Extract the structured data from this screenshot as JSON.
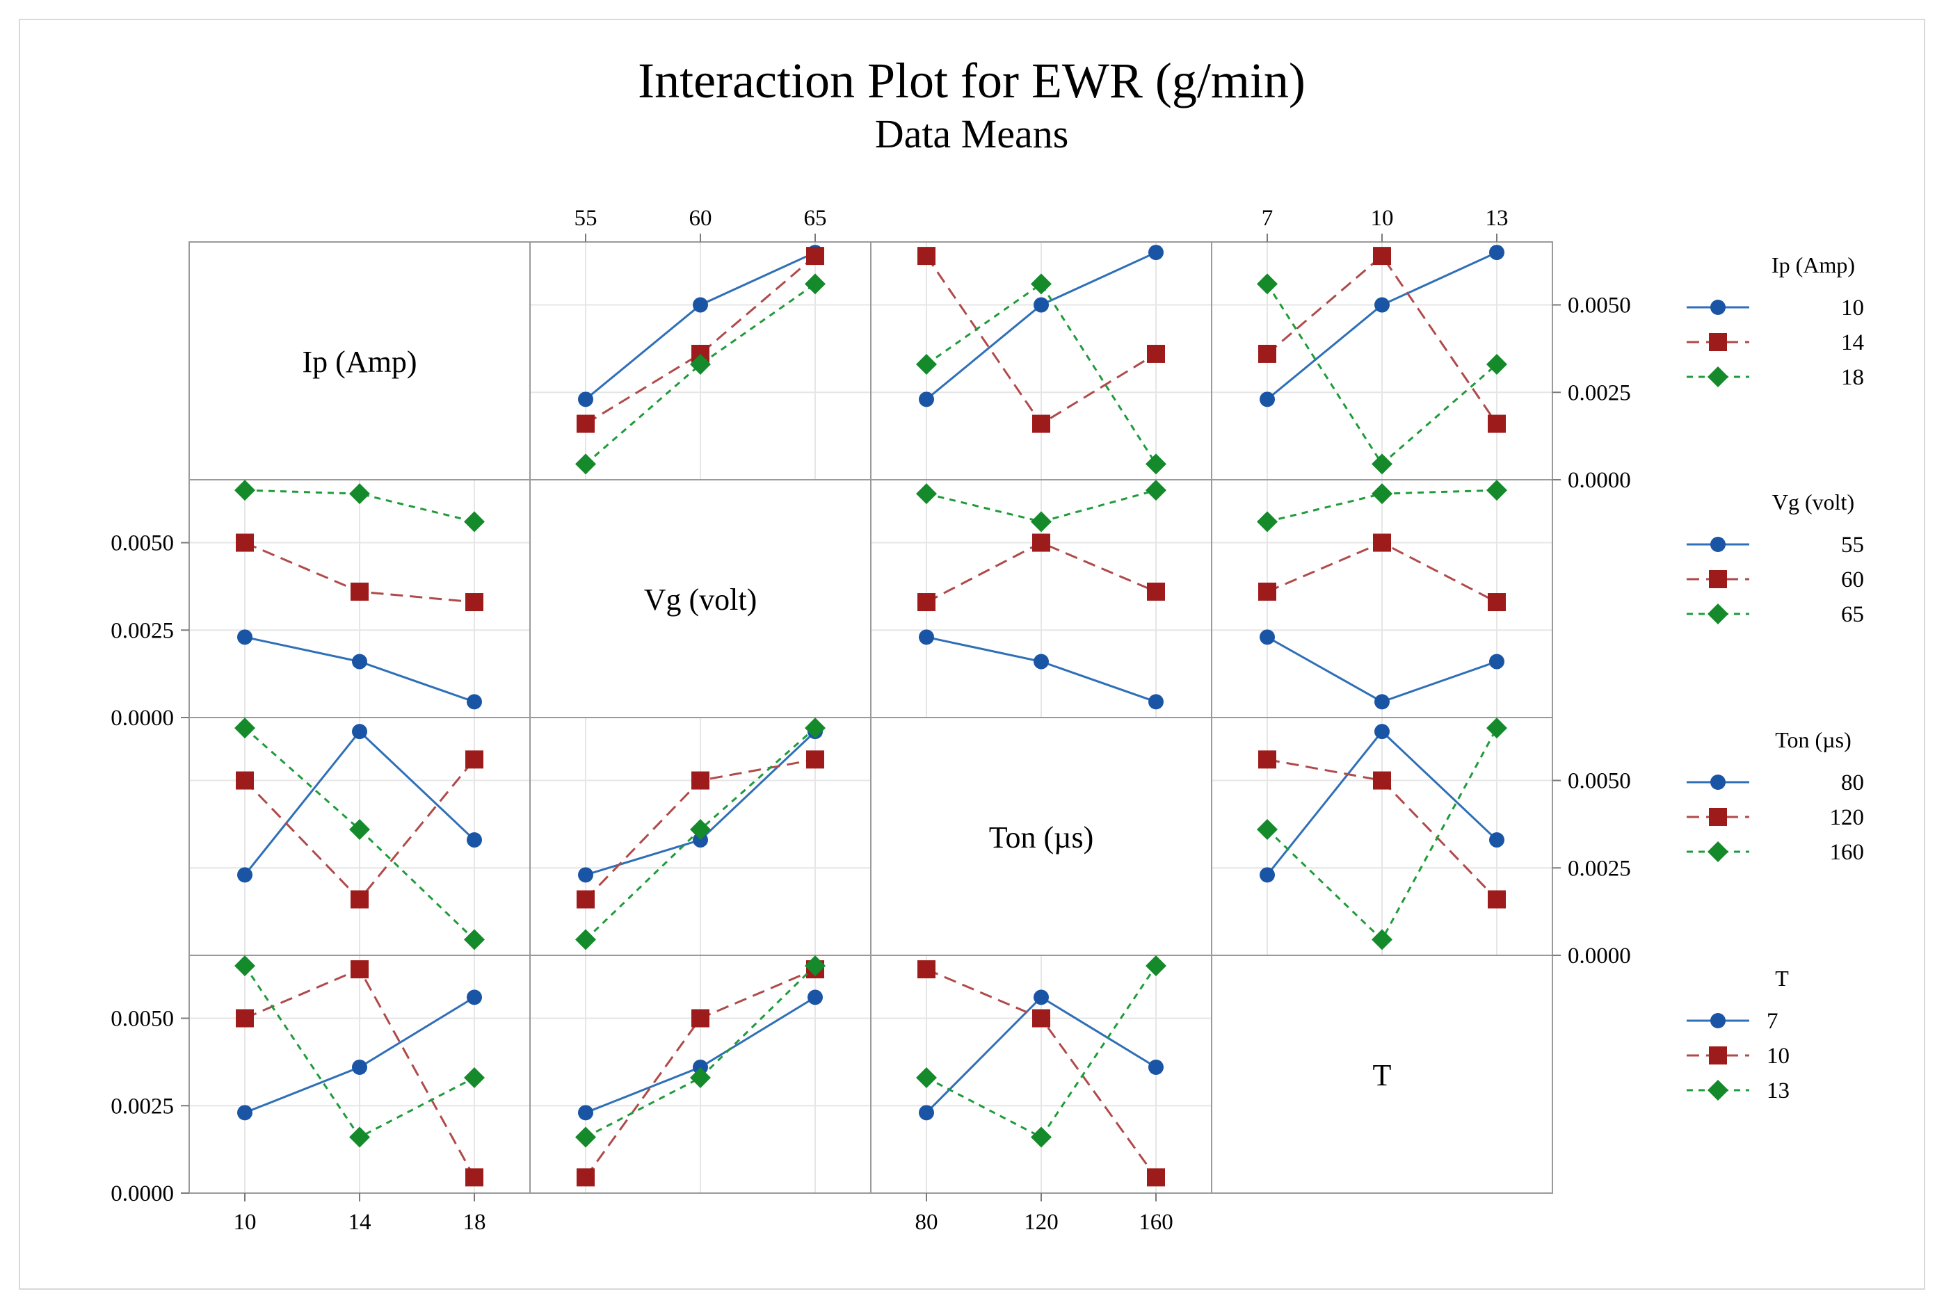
{
  "chart_data": {
    "type": "line",
    "title": "Interaction Plot for EWR (g/min)",
    "subtitle": "Data Means",
    "ylim": [
      0.0,
      0.0068
    ],
    "y_ticks": [
      "0.0000",
      "0.0025",
      "0.0050"
    ],
    "y_tick_values": [
      0.0,
      0.0025,
      0.005
    ],
    "factors": [
      {
        "name": "Ip (Amp)",
        "levels": [
          "10",
          "14",
          "18"
        ],
        "legend_title": "Ip (Amp)",
        "legend_levels": [
          "10",
          "14",
          "18"
        ]
      },
      {
        "name": "Vg (volt)",
        "levels": [
          "55",
          "60",
          "65"
        ],
        "legend_title": "Vg (volt)",
        "legend_levels": [
          "55",
          "60",
          "65"
        ]
      },
      {
        "name": "Ton (µs)",
        "levels": [
          "80",
          "120",
          "160"
        ],
        "legend_title": "Ton (µs)",
        "legend_levels": [
          "80",
          "120",
          "160"
        ]
      },
      {
        "name": "T",
        "levels": [
          "7",
          "10",
          "13"
        ],
        "legend_title": "T",
        "legend_levels": [
          "7",
          "10",
          "13"
        ]
      }
    ],
    "series_styles": [
      {
        "color": "#2f6fb8",
        "marker": "circle",
        "marker_color": "#1a55a5",
        "dash": ""
      },
      {
        "color": "#b04a4a",
        "marker": "square",
        "marker_color": "#9e1b1b",
        "dash": "18,10"
      },
      {
        "color": "#1f9b3a",
        "marker": "diamond",
        "marker_color": "#148a2b",
        "dash": "9,8"
      }
    ],
    "panels": [
      {
        "row": 0,
        "col": 1,
        "series": [
          [
            0.0023,
            0.005,
            0.0065
          ],
          [
            0.0016,
            0.0036,
            0.0064
          ],
          [
            0.00045,
            0.0033,
            0.0056
          ]
        ]
      },
      {
        "row": 0,
        "col": 2,
        "series": [
          [
            0.0023,
            0.005,
            0.0065
          ],
          [
            0.0064,
            0.0016,
            0.0036
          ],
          [
            0.0033,
            0.0056,
            0.00045
          ]
        ]
      },
      {
        "row": 0,
        "col": 3,
        "series": [
          [
            0.0023,
            0.005,
            0.0065
          ],
          [
            0.0036,
            0.0064,
            0.0016
          ],
          [
            0.0056,
            0.00045,
            0.0033
          ]
        ]
      },
      {
        "row": 1,
        "col": 0,
        "series": [
          [
            0.0023,
            0.0016,
            0.00045
          ],
          [
            0.005,
            0.0036,
            0.0033
          ],
          [
            0.0065,
            0.0064,
            0.0056
          ]
        ]
      },
      {
        "row": 1,
        "col": 2,
        "series": [
          [
            0.0023,
            0.0016,
            0.00045
          ],
          [
            0.0033,
            0.005,
            0.0036
          ],
          [
            0.0064,
            0.0056,
            0.0065
          ]
        ]
      },
      {
        "row": 1,
        "col": 3,
        "series": [
          [
            0.0023,
            0.00045,
            0.0016
          ],
          [
            0.0036,
            0.005,
            0.0033
          ],
          [
            0.0056,
            0.0064,
            0.0065
          ]
        ]
      },
      {
        "row": 2,
        "col": 0,
        "series": [
          [
            0.0023,
            0.0064,
            0.0033
          ],
          [
            0.005,
            0.0016,
            0.0056
          ],
          [
            0.0065,
            0.0036,
            0.00045
          ]
        ]
      },
      {
        "row": 2,
        "col": 1,
        "series": [
          [
            0.0023,
            0.0033,
            0.0064
          ],
          [
            0.0016,
            0.005,
            0.0056
          ],
          [
            0.00045,
            0.0036,
            0.0065
          ]
        ]
      },
      {
        "row": 2,
        "col": 3,
        "series": [
          [
            0.0023,
            0.0064,
            0.0033
          ],
          [
            0.0056,
            0.005,
            0.0016
          ],
          [
            0.0036,
            0.00045,
            0.0065
          ]
        ]
      },
      {
        "row": 3,
        "col": 0,
        "series": [
          [
            0.0023,
            0.0036,
            0.0056
          ],
          [
            0.005,
            0.0064,
            0.00045
          ],
          [
            0.0065,
            0.0016,
            0.0033
          ]
        ]
      },
      {
        "row": 3,
        "col": 1,
        "series": [
          [
            0.0023,
            0.0036,
            0.0056
          ],
          [
            0.00045,
            0.005,
            0.0064
          ],
          [
            0.0016,
            0.0033,
            0.0065
          ]
        ]
      },
      {
        "row": 3,
        "col": 2,
        "series": [
          [
            0.0023,
            0.0056,
            0.0036
          ],
          [
            0.0064,
            0.005,
            0.00045
          ],
          [
            0.0033,
            0.0016,
            0.0065
          ]
        ]
      }
    ]
  }
}
